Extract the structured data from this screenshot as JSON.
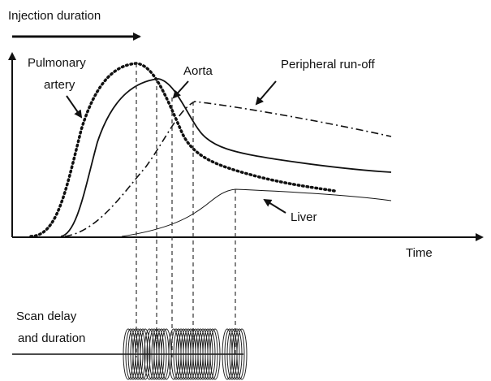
{
  "header": {
    "title": "Injection duration"
  },
  "curves": {
    "pulmonary_artery": [
      "Pulmonary",
      "artery"
    ],
    "aorta": "Aorta",
    "peripheral": "Peripheral run-off",
    "liver": "Liver"
  },
  "axis": {
    "x_label": "Time"
  },
  "scan": [
    "Scan delay",
    "and duration"
  ]
}
